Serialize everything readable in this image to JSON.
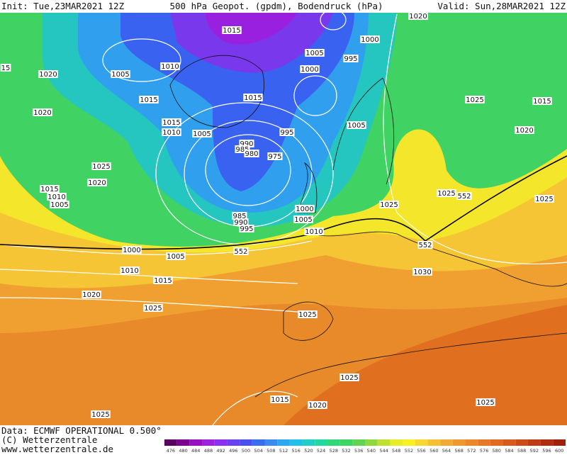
{
  "header": {
    "init": "Init: Tue,23MAR2021 12Z",
    "title": "500 hPa Geopot. (gpdm), Bodendruck (hPa)",
    "valid": "Valid: Sun,28MAR2021 12Z"
  },
  "footer": {
    "data": "Data: ECMWF OPERATIONAL 0.500°",
    "copyright": "(C) Wetterzentrale",
    "url": "www.wetterzentrale.de"
  },
  "legend": {
    "levels": [
      476,
      480,
      484,
      488,
      492,
      496,
      500,
      504,
      508,
      512,
      516,
      520,
      524,
      528,
      532,
      536,
      540,
      544,
      548,
      552,
      556,
      560,
      564,
      568,
      572,
      576,
      580,
      584,
      588,
      592,
      596,
      600
    ],
    "colors": [
      "#5a0060",
      "#7a0090",
      "#9a10c0",
      "#a020e0",
      "#8a30f0",
      "#6a40f0",
      "#4a50f0",
      "#3a6cf0",
      "#3a8af0",
      "#2aa8f0",
      "#20c0e8",
      "#20d0c8",
      "#20d8a0",
      "#30d878",
      "#40d460",
      "#60d450",
      "#90d840",
      "#c0e030",
      "#e8ec28",
      "#f8f020",
      "#f8d830",
      "#f6c035",
      "#f2aa35",
      "#f09830",
      "#ec882a",
      "#e87824",
      "#e26a20",
      "#d85a1c",
      "#cc4a18",
      "#c03a14",
      "#b02c10",
      "#a0200c"
    ]
  },
  "map": {
    "labels": [
      1015,
      1020,
      1000,
      1005,
      995,
      1000,
      15,
      1020,
      1005,
      1010,
      1015,
      1015,
      1025,
      1015,
      1020,
      1015,
      1010,
      1005,
      1005,
      995,
      1020,
      990,
      985,
      980,
      975,
      1025,
      1020,
      1015,
      1010,
      1005,
      1025,
      552,
      1025,
      1025,
      1000,
      985,
      990,
      1005,
      995,
      1010,
      552,
      552,
      1000,
      1005,
      1010,
      1015,
      1030,
      1020,
      1025,
      1025,
      1025,
      1015,
      1020,
      1025,
      1025
    ]
  }
}
